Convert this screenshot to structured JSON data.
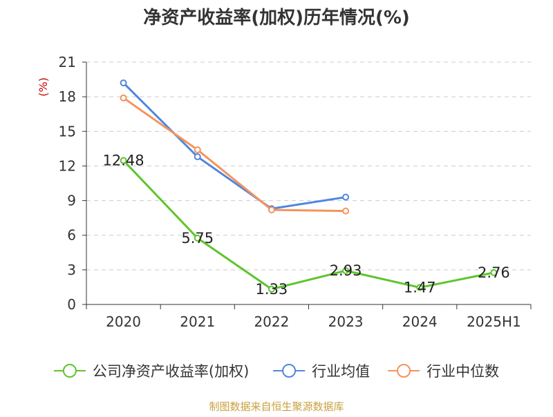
{
  "chart_data": {
    "type": "line",
    "title": "净资产收益率(加权)历年情况(%)",
    "ylabel": "(%)",
    "xlabel": "",
    "categories": [
      "2020",
      "2021",
      "2022",
      "2023",
      "2024",
      "2025H1"
    ],
    "ylim": [
      0,
      21
    ],
    "yticks": [
      0,
      3,
      6,
      9,
      12,
      15,
      18,
      21
    ],
    "grid": true,
    "legend_position": "bottom",
    "series": [
      {
        "name": "公司净资产收益率(加权)",
        "color": "#5cc52a",
        "values": [
          12.48,
          5.75,
          1.33,
          2.93,
          1.47,
          2.76
        ],
        "show_labels": true
      },
      {
        "name": "行业均值",
        "color": "#4f86e0",
        "values": [
          19.2,
          12.8,
          8.3,
          9.3,
          null,
          null
        ],
        "show_labels": false
      },
      {
        "name": "行业中位数",
        "color": "#f5935b",
        "values": [
          17.9,
          13.4,
          8.2,
          8.1,
          null,
          null
        ],
        "show_labels": false
      }
    ]
  },
  "source": "制图数据来自恒生聚源数据库",
  "colors": {
    "ylabel": "#cc0000",
    "source": "#c9a040",
    "axis": "#333333",
    "grid": "#cccccc"
  }
}
